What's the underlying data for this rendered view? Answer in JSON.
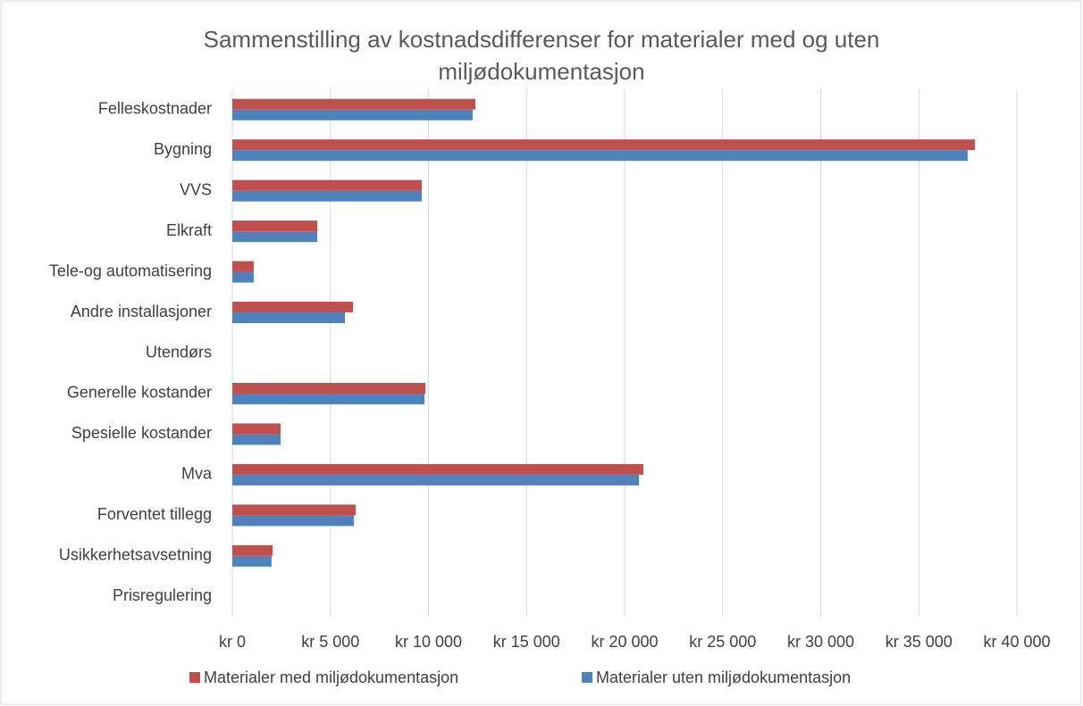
{
  "chart_data": {
    "type": "barh",
    "title": "Sammenstilling av kostnadsdifferenser for materialer med og uten miljødokumentasjon",
    "categories": [
      "Felleskostnader",
      "Bygning",
      "VVS",
      "Elkraft",
      "Tele-og automatisering",
      "Andre installasjoner",
      "Utendørs",
      "Generelle kostander",
      "Spesielle kostander",
      "Mva",
      "Forventet tillegg",
      "Usikkerhetsavsetning",
      "Prisregulering"
    ],
    "series": [
      {
        "name": "Materialer med miljødokumentasjon",
        "color": "#c0504d",
        "values": [
          12390,
          37860,
          9660,
          4330,
          1090,
          6150,
          0,
          9840,
          2460,
          20960,
          6290,
          2050,
          0
        ]
      },
      {
        "name": "Materialer uten miljødokumentasjon",
        "color": "#4f81bd",
        "values": [
          12250,
          37490,
          9660,
          4330,
          1090,
          5740,
          0,
          9800,
          2460,
          20730,
          6200,
          2000,
          0
        ]
      }
    ],
    "xlim": [
      0,
      40000
    ],
    "xticks": [
      {
        "value": 0,
        "label": "kr  0"
      },
      {
        "value": 5000,
        "label": "kr 5 000"
      },
      {
        "value": 10000,
        "label": "kr 10 000"
      },
      {
        "value": 15000,
        "label": "kr 15 000"
      },
      {
        "value": 20000,
        "label": "kr 20 000"
      },
      {
        "value": 25000,
        "label": "kr 25 000"
      },
      {
        "value": 30000,
        "label": "kr 30 000"
      },
      {
        "value": 35000,
        "label": "kr 35 000"
      },
      {
        "value": 40000,
        "label": "kr 40 000"
      }
    ],
    "grid": true,
    "legend": "bottom"
  }
}
